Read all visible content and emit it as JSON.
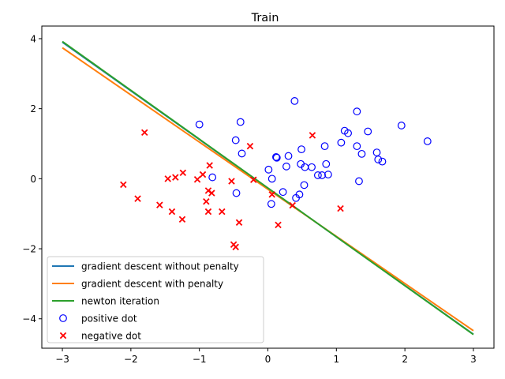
{
  "chart_data": {
    "type": "scatter",
    "title": "Train",
    "xlabel": "",
    "ylabel": "",
    "xlim": [
      -3.3,
      3.3
    ],
    "ylim": [
      -4.84,
      4.36
    ],
    "xticks": [
      -3,
      -2,
      -1,
      0,
      1,
      2,
      3
    ],
    "yticks": [
      -4,
      -2,
      0,
      2,
      4
    ],
    "xtick_labels": [
      "−3",
      "−2",
      "−1",
      "0",
      "1",
      "2",
      "3"
    ],
    "ytick_labels": [
      "−4",
      "−2",
      "0",
      "2",
      "4"
    ],
    "grid": false,
    "legend_position": "lower-left",
    "lines": [
      {
        "name": "gradient descent without penalty",
        "color": "#1f77b4",
        "x": [
          -3,
          3
        ],
        "y": [
          3.9,
          -4.44
        ]
      },
      {
        "name": "gradient descent with penalty",
        "color": "#ff7f0e",
        "x": [
          -3,
          3
        ],
        "y": [
          3.74,
          -4.34
        ]
      },
      {
        "name": "newton iteration",
        "color": "#2ca02c",
        "x": [
          -3,
          3
        ],
        "y": [
          3.92,
          -4.45
        ]
      }
    ],
    "scatter": [
      {
        "name": "positive dot",
        "marker": "circle",
        "color": "#0000ff",
        "points": [
          [
            -1.0,
            1.55
          ],
          [
            -0.47,
            1.1
          ],
          [
            -0.4,
            1.62
          ],
          [
            -0.38,
            0.72
          ],
          [
            0.39,
            2.22
          ],
          [
            1.3,
            1.92
          ],
          [
            1.95,
            1.52
          ],
          [
            1.12,
            1.37
          ],
          [
            1.17,
            1.3
          ],
          [
            1.46,
            1.35
          ],
          [
            2.33,
            1.07
          ],
          [
            1.07,
            1.03
          ],
          [
            1.3,
            0.93
          ],
          [
            0.83,
            0.93
          ],
          [
            1.59,
            0.75
          ],
          [
            1.37,
            0.71
          ],
          [
            1.61,
            0.55
          ],
          [
            1.67,
            0.49
          ],
          [
            0.49,
            0.84
          ],
          [
            0.3,
            0.65
          ],
          [
            0.12,
            0.62
          ],
          [
            0.13,
            0.6
          ],
          [
            0.85,
            0.42
          ],
          [
            0.48,
            0.42
          ],
          [
            0.54,
            0.33
          ],
          [
            0.64,
            0.33
          ],
          [
            0.27,
            0.35
          ],
          [
            0.01,
            0.26
          ],
          [
            0.73,
            0.1
          ],
          [
            0.79,
            0.1
          ],
          [
            0.88,
            0.12
          ],
          [
            -0.81,
            0.04
          ],
          [
            0.06,
            0.0
          ],
          [
            1.33,
            -0.07
          ],
          [
            0.53,
            -0.18
          ],
          [
            0.22,
            -0.38
          ],
          [
            -0.46,
            -0.41
          ],
          [
            0.46,
            -0.45
          ],
          [
            0.41,
            -0.55
          ],
          [
            0.05,
            -0.72
          ]
        ]
      },
      {
        "name": "negative dot",
        "marker": "x",
        "color": "#ff0000",
        "points": [
          [
            -1.8,
            1.32
          ],
          [
            0.65,
            1.24
          ],
          [
            -0.26,
            0.93
          ],
          [
            -0.85,
            0.38
          ],
          [
            -1.24,
            0.17
          ],
          [
            -0.95,
            0.12
          ],
          [
            -1.35,
            0.04
          ],
          [
            -1.46,
            0.0
          ],
          [
            -1.03,
            -0.02
          ],
          [
            -0.21,
            -0.03
          ],
          [
            -0.53,
            -0.07
          ],
          [
            -2.11,
            -0.17
          ],
          [
            -0.87,
            -0.34
          ],
          [
            -0.82,
            -0.41
          ],
          [
            0.06,
            -0.45
          ],
          [
            -1.9,
            -0.57
          ],
          [
            -0.9,
            -0.65
          ],
          [
            -1.58,
            -0.75
          ],
          [
            0.36,
            -0.76
          ],
          [
            1.06,
            -0.85
          ],
          [
            -1.4,
            -0.94
          ],
          [
            -0.87,
            -0.94
          ],
          [
            -0.67,
            -0.94
          ],
          [
            -1.25,
            -1.16
          ],
          [
            -0.42,
            -1.25
          ],
          [
            0.15,
            -1.32
          ],
          [
            -0.5,
            -1.88
          ],
          [
            -0.47,
            -1.95
          ]
        ]
      }
    ]
  }
}
